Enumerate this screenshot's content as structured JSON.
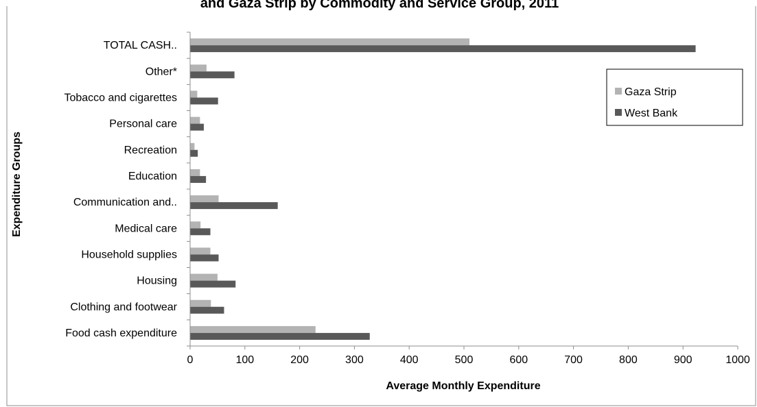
{
  "chart_data": {
    "type": "bar",
    "orientation": "horizontal",
    "title": "and Gaza Strip by Commodity and Service Group, 2011",
    "xlabel": "Average Monthly Expenditure",
    "ylabel": "Expenditure Groups",
    "xlim": [
      0,
      1000
    ],
    "xticks": [
      0,
      100,
      200,
      300,
      400,
      500,
      600,
      700,
      800,
      900,
      1000
    ],
    "categories": [
      "TOTAL CASH..",
      "Other*",
      "Tobacco and cigarettes",
      "Personal care",
      "Recreation",
      "Education",
      "Communication and..",
      "Medical care",
      "Household supplies",
      "Housing",
      "Clothing and footwear",
      "Food cash expenditure"
    ],
    "series": [
      {
        "name": "Gaza Strip",
        "color": "#b3b3b3",
        "values": [
          510,
          30,
          13,
          18,
          8,
          18,
          52,
          19,
          37,
          50,
          38,
          229
        ]
      },
      {
        "name": "West Bank",
        "color": "#595959",
        "values": [
          923,
          81,
          51,
          25,
          14,
          29,
          160,
          37,
          52,
          83,
          62,
          328
        ]
      }
    ],
    "legend_position": "top-right",
    "grid": false
  }
}
